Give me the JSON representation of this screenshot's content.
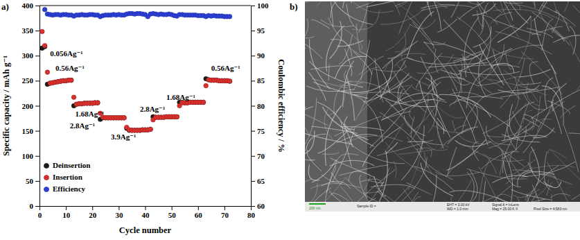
{
  "chart_data": [
    {
      "type": "scatter",
      "title": "a)",
      "x_label": "Cycle number",
      "y_label": "Specific capacity / mAh g⁻¹",
      "y2_label": "Coulombic efficiency / %",
      "xlim": [
        0,
        80
      ],
      "xticks": [
        0,
        10,
        20,
        30,
        40,
        50,
        60,
        70,
        80
      ],
      "ylim": [
        0,
        400
      ],
      "yticks": [
        0,
        50,
        100,
        150,
        200,
        250,
        300,
        350,
        400
      ],
      "y2lim": [
        60,
        100
      ],
      "y2ticks": [
        60,
        65,
        70,
        75,
        80,
        85,
        90,
        95,
        100
      ],
      "legend": "lower left",
      "marker": "circle",
      "x": [
        1,
        2,
        3,
        4,
        5,
        6,
        7,
        8,
        9,
        10,
        11,
        12,
        13,
        14,
        15,
        16,
        17,
        18,
        19,
        20,
        21,
        22,
        23,
        24,
        25,
        26,
        27,
        28,
        29,
        30,
        31,
        32,
        33,
        34,
        35,
        36,
        37,
        38,
        39,
        40,
        41,
        42,
        43,
        44,
        45,
        46,
        47,
        48,
        49,
        50,
        51,
        52,
        53,
        54,
        55,
        56,
        57,
        58,
        59,
        60,
        61,
        62,
        63,
        64,
        65,
        66,
        67,
        68,
        69,
        70,
        71,
        72
      ],
      "series": [
        {
          "name": "Deinsertion",
          "color": "#1a1a1a",
          "values": [
            315,
            318,
            243,
            245,
            246,
            247,
            248,
            249,
            250,
            250,
            251,
            251,
            200,
            203,
            204,
            204,
            205,
            205,
            205,
            205,
            206,
            206,
            173,
            176,
            176,
            176,
            176,
            176,
            176,
            176,
            176,
            176,
            155,
            151,
            151,
            151,
            151,
            151,
            152,
            152,
            152,
            153,
            178,
            177,
            177,
            177,
            177,
            178,
            178,
            178,
            178,
            178,
            207,
            207,
            206,
            206,
            207,
            207,
            207,
            207,
            207,
            207,
            254,
            252,
            251,
            251,
            251,
            250,
            250,
            250,
            250,
            249
          ]
        },
        {
          "name": "Insertion",
          "color": "#d9302c",
          "values": [
            348,
            320,
            267,
            245,
            246,
            247,
            248,
            249,
            250,
            250,
            251,
            251,
            217,
            203,
            204,
            204,
            205,
            205,
            205,
            205,
            206,
            206,
            185,
            177,
            176,
            176,
            176,
            176,
            176,
            176,
            176,
            176,
            157,
            152,
            151,
            151,
            151,
            151,
            152,
            152,
            152,
            153,
            172,
            177,
            177,
            177,
            177,
            178,
            178,
            178,
            178,
            178,
            200,
            206,
            206,
            206,
            207,
            207,
            207,
            207,
            207,
            207,
            240,
            252,
            251,
            251,
            251,
            250,
            250,
            250,
            250,
            249
          ]
        },
        {
          "name": "Efficiency",
          "color": "#2b3fd6",
          "axis": "y2",
          "values": [
            null,
            99.2,
            98.3,
            98.2,
            98.1,
            98.2,
            98.2,
            98.1,
            98.2,
            98.2,
            98.1,
            98.1,
            97.9,
            98.1,
            98.1,
            98.2,
            98.1,
            98.1,
            98.2,
            98.2,
            98.1,
            98.1,
            97.8,
            98.0,
            98.1,
            98.1,
            98.1,
            98.2,
            98.1,
            98.2,
            98.1,
            98.1,
            98.3,
            98.4,
            98.4,
            98.3,
            98.4,
            98.4,
            98.3,
            98.2,
            97.8,
            98.3,
            98.4,
            98.3,
            98.2,
            98.3,
            98.2,
            98.2,
            98.3,
            98.2,
            98.0,
            97.9,
            98.2,
            98.2,
            98.1,
            98.1,
            98.1,
            98.1,
            98.1,
            98.0,
            98.0,
            98.0,
            97.8,
            98.0,
            97.9,
            98.0,
            97.9,
            97.9,
            97.9,
            97.8,
            97.8,
            97.8
          ]
        }
      ],
      "annotations": [
        {
          "text": "0.056Ag⁻¹",
          "x": 4,
          "y": 303
        },
        {
          "text": "0.56Ag⁻¹",
          "x": 6,
          "y": 274
        },
        {
          "text": "1.68Ag⁻¹",
          "x": 13.5,
          "y": 182
        },
        {
          "text": "2.8Ag⁻¹",
          "x": 11.5,
          "y": 158
        },
        {
          "text": "3.9Ag⁻¹",
          "x": 27,
          "y": 137
        },
        {
          "text": "2.8Ag⁻¹",
          "x": 38,
          "y": 192
        },
        {
          "text": "1.68Ag⁻¹",
          "x": 48,
          "y": 215
        },
        {
          "text": "0.56Ag⁻¹",
          "x": 65,
          "y": 273
        }
      ]
    },
    {
      "type": "image",
      "title": "b)",
      "annotations": [
        "200 nm",
        "Sample ID =",
        "EHT = 3.00 kV",
        "Signal A = InLens",
        "WD = 1.0 mm",
        "Mag = 25.00 K X",
        "Pixel Size = 4.583 nm"
      ]
    }
  ]
}
